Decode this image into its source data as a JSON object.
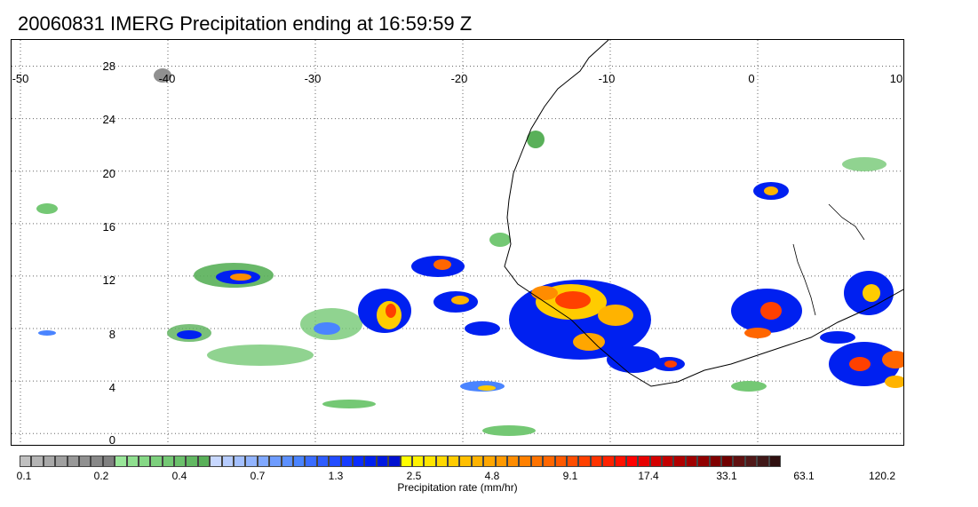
{
  "title": "20060831 IMERG Precipitation ending at 16:59:59 Z",
  "map": {
    "lon_range": [
      -50,
      10
    ],
    "lat_range": [
      -1,
      30
    ],
    "lon_ticks": [
      "-50",
      "-40",
      "-30",
      "-20",
      "-10",
      "0",
      "10"
    ],
    "lat_ticks": [
      "28",
      "24",
      "20",
      "16",
      "12",
      "8",
      "4",
      "0"
    ],
    "grid": true,
    "coastline_color": "#000000"
  },
  "colorbar": {
    "label": "Precipitation rate (mm/hr)",
    "tick_labels": [
      "0.1",
      "0.2",
      "0.4",
      "0.7",
      "1.3",
      "2.5",
      "4.8",
      "9.1",
      "17.4",
      "33.1",
      "63.1",
      "120.2"
    ],
    "colors": [
      "#c0c0c0",
      "#b4b4b4",
      "#a8a8a8",
      "#a0a0a0",
      "#989898",
      "#909090",
      "#888888",
      "#808080",
      "#99e699",
      "#8fdf8f",
      "#86d886",
      "#7dd07d",
      "#74c874",
      "#6bc06b",
      "#62b862",
      "#59b059",
      "#c8d8ff",
      "#b6ccff",
      "#a4c0ff",
      "#92b4ff",
      "#80a8ff",
      "#6e9cff",
      "#5c90ff",
      "#4a84ff",
      "#3a6cff",
      "#2e5cff",
      "#224cff",
      "#163cff",
      "#0a2cff",
      "#0020f0",
      "#0018e0",
      "#0010d0",
      "#ffff00",
      "#fff200",
      "#ffe600",
      "#ffd900",
      "#ffcc00",
      "#ffbf00",
      "#ffb300",
      "#ffa600",
      "#ff9900",
      "#ff8c00",
      "#ff8000",
      "#ff7300",
      "#ff6600",
      "#ff5900",
      "#ff4d00",
      "#ff4000",
      "#ff3300",
      "#ff2200",
      "#ff1100",
      "#ff0000",
      "#e60000",
      "#d40000",
      "#c20000",
      "#b00000",
      "#a00000",
      "#900000",
      "#800000",
      "#700000",
      "#601010",
      "#501818",
      "#401818",
      "#301010"
    ]
  }
}
